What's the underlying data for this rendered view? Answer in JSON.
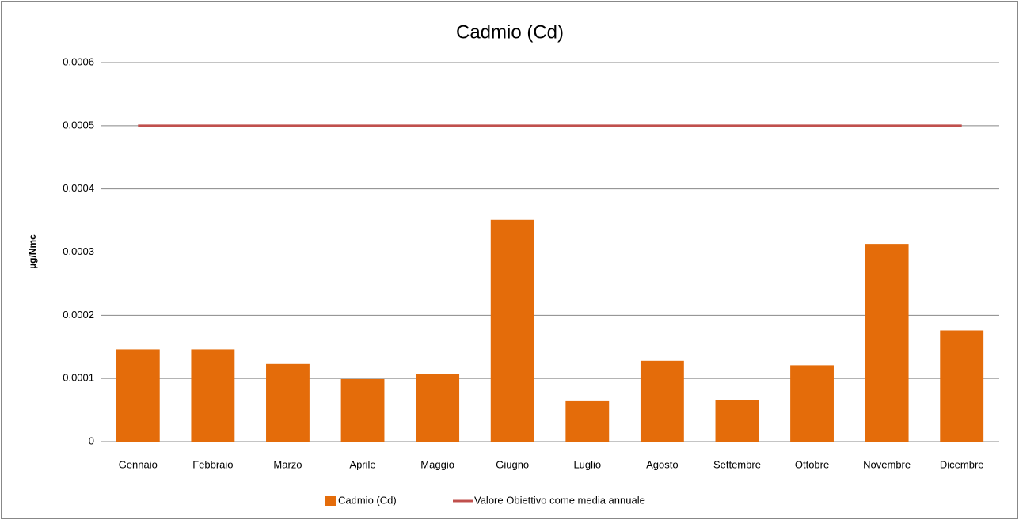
{
  "chart_data": {
    "type": "bar",
    "title": "Cadmio (Cd)",
    "y_label": "µg/Nmc",
    "categories": [
      "Gennaio",
      "Febbraio",
      "Marzo",
      "Aprile",
      "Maggio",
      "Giugno",
      "Luglio",
      "Agosto",
      "Settembre",
      "Ottobre",
      "Novembre",
      "Dicembre"
    ],
    "series": [
      {
        "name": "Cadmio (Cd)",
        "type": "bar",
        "color": "#e46c0a",
        "values": [
          0.000146,
          0.000146,
          0.000123,
          9.9e-05,
          0.000107,
          0.000351,
          6.4e-05,
          0.000128,
          6.6e-05,
          0.000121,
          0.000313,
          0.000176
        ]
      },
      {
        "name": "Valore Obiettivo come media annuale",
        "type": "line",
        "color": "#c0504d",
        "values": [
          0.0005,
          0.0005,
          0.0005,
          0.0005,
          0.0005,
          0.0005,
          0.0005,
          0.0005,
          0.0005,
          0.0005,
          0.0005,
          0.0005
        ]
      }
    ],
    "ylim": [
      0,
      0.0006
    ],
    "yticks": [
      0,
      0.0001,
      0.0002,
      0.0003,
      0.0004,
      0.0005,
      0.0006
    ],
    "grid": true,
    "legend": "bottom"
  }
}
